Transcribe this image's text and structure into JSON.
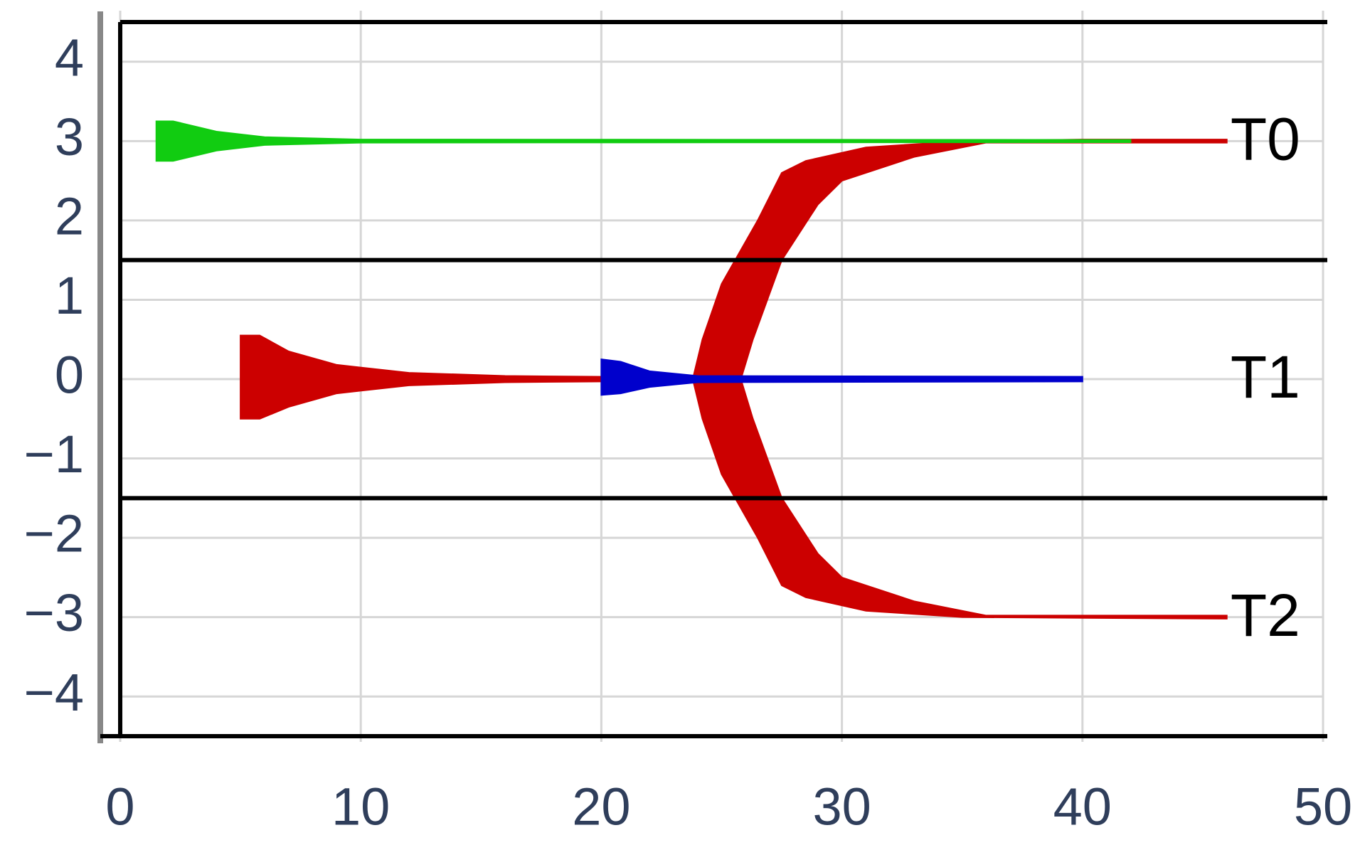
{
  "chart_data": {
    "type": "area",
    "xlim": [
      0,
      50
    ],
    "ylim": [
      -4.5,
      4.5
    ],
    "xticks": [
      0,
      10,
      20,
      30,
      40,
      50
    ],
    "yticks": [
      {
        "value": -4,
        "label": "−4"
      },
      {
        "value": -3,
        "label": "−3"
      },
      {
        "value": -2,
        "label": "−2"
      },
      {
        "value": -1,
        "label": "−1"
      },
      0,
      1,
      2,
      3,
      4
    ],
    "grid": true,
    "hlines": [
      1.5,
      -1.5
    ],
    "series": [
      {
        "color": "#cc0000",
        "x": [
          46,
          40,
          35,
          31,
          28.5,
          27.5,
          26.5,
          25,
          24.2,
          23.8,
          24.2,
          25,
          26.5,
          27.5,
          28.5,
          31,
          35,
          46,
          46,
          36,
          33,
          30,
          29,
          27.5,
          26.3,
          25.8,
          26.3,
          27.5,
          29,
          30,
          33,
          36,
          46
        ],
        "y": [
          3.02,
          3.02,
          3.0,
          2.92,
          2.75,
          2.6,
          2.0,
          1.2,
          0.5,
          0,
          -0.5,
          -1.2,
          -2.0,
          -2.6,
          -2.75,
          -2.92,
          -3.0,
          -3.02,
          -2.98,
          -2.98,
          -2.8,
          -2.5,
          -2.2,
          -1.5,
          -0.5,
          0,
          0.5,
          1.5,
          2.2,
          2.5,
          2.8,
          2.98,
          2.98
        ]
      },
      {
        "color": "#cc0000",
        "x": [
          5,
          5,
          5.8,
          7,
          9,
          12,
          16,
          20,
          20,
          16,
          12,
          9,
          7,
          5.8,
          5
        ],
        "y": [
          -0.5,
          0.55,
          0.55,
          0.35,
          0.18,
          0.08,
          0.04,
          0.03,
          -0.03,
          -0.04,
          -0.08,
          -0.18,
          -0.35,
          -0.5,
          -0.5
        ]
      },
      {
        "color": "#0000cc",
        "x": [
          20,
          20,
          20.8,
          22,
          24,
          40,
          40,
          24,
          22,
          20.8,
          20
        ],
        "y": [
          -0.2,
          0.25,
          0.22,
          0.1,
          0.04,
          0.03,
          -0.03,
          -0.04,
          -0.1,
          -0.18,
          -0.2
        ]
      },
      {
        "color": "#11cc11",
        "x": [
          1.5,
          1.5,
          2.2,
          4,
          6,
          10,
          42,
          42,
          10,
          6,
          4,
          2.2,
          1.5
        ],
        "y": [
          2.75,
          3.25,
          3.25,
          3.12,
          3.05,
          3.02,
          3.015,
          2.985,
          2.98,
          2.95,
          2.88,
          2.75,
          2.75
        ]
      }
    ],
    "annotations": [
      {
        "text": "T0",
        "x": 47.6,
        "y": 3
      },
      {
        "text": "T1",
        "x": 47.6,
        "y": 0
      },
      {
        "text": "T2",
        "x": 47.6,
        "y": -3
      }
    ]
  }
}
